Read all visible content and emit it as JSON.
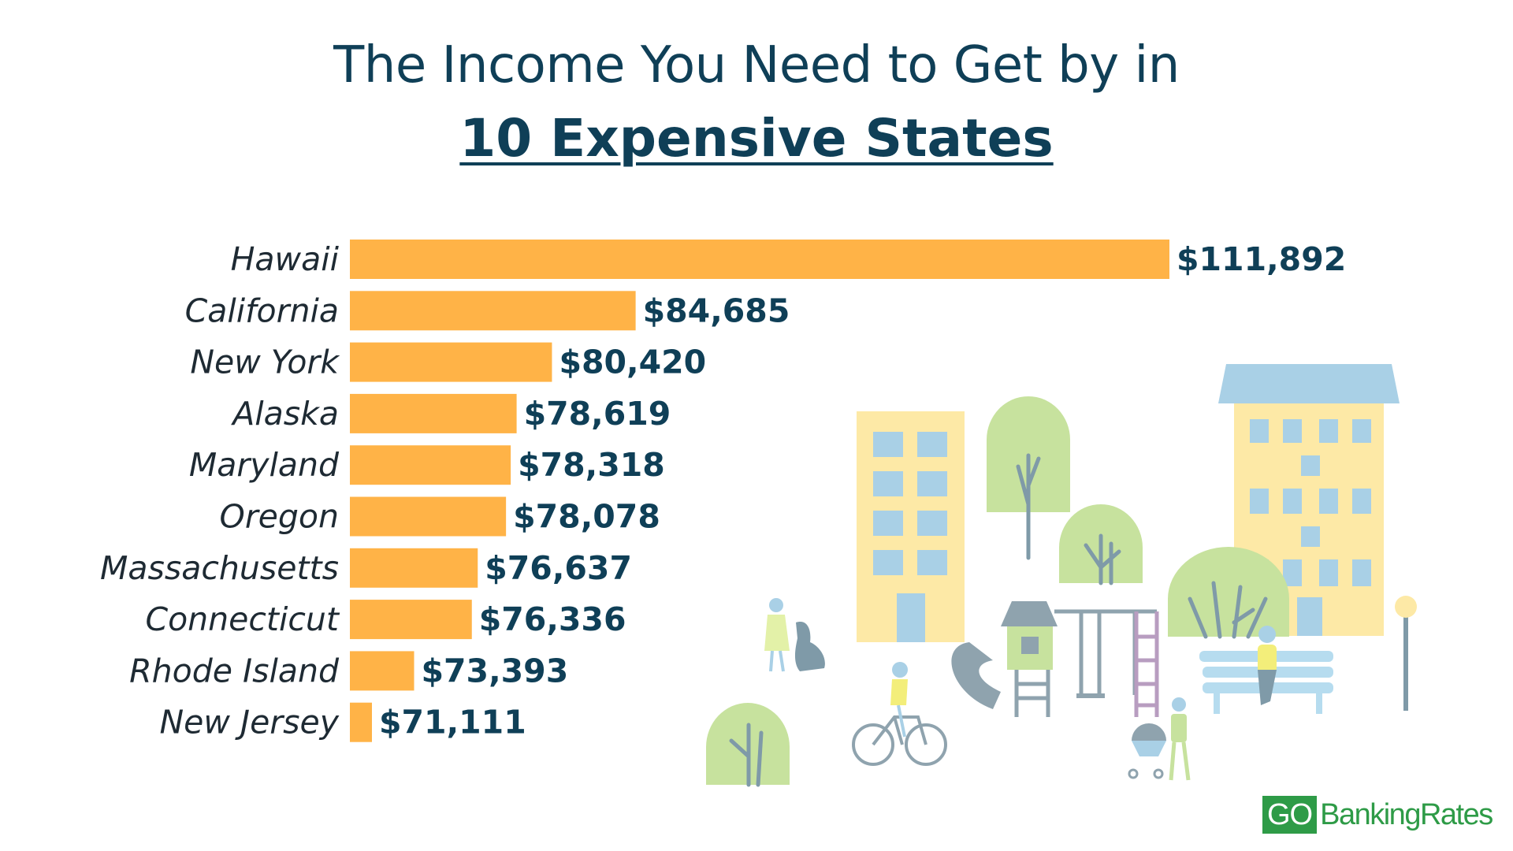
{
  "title": {
    "line1": "The Income You Need to Get by in",
    "line2": "10 Expensive States"
  },
  "colors": {
    "bar": "#ffb347",
    "title": "#0f3f57",
    "value_label": "#0f3f57",
    "category_label": "#1e2a33",
    "brand": "#2e9b47"
  },
  "chart_data": {
    "type": "bar",
    "orientation": "horizontal",
    "categories": [
      "Hawaii",
      "California",
      "New York",
      "Alaska",
      "Maryland",
      "Oregon",
      "Massachusetts",
      "Connecticut",
      "Rhode Island",
      "New Jersey"
    ],
    "values": [
      111892,
      84685,
      80420,
      78619,
      78318,
      78078,
      76637,
      76336,
      73393,
      71111
    ],
    "value_labels": [
      "$111,892",
      "$84,685",
      "$80,420",
      "$78,619",
      "$78,318",
      "$78,078",
      "$76,637",
      "$76,336",
      "$73,393",
      "$71,111"
    ],
    "title": "The Income You Need to Get by in 10 Expensive States",
    "xlabel": "",
    "ylabel": "",
    "grid": false
  },
  "logo": {
    "go": "GO",
    "rest": "BankingRates"
  }
}
